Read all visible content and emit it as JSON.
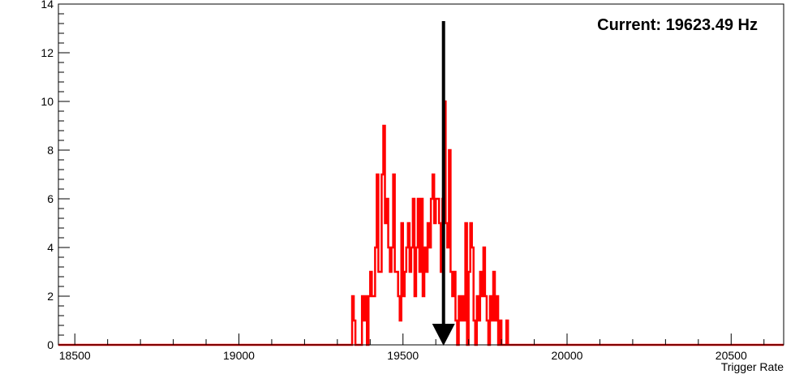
{
  "chart_data": {
    "type": "histogram",
    "title": "",
    "xlabel": "Trigger Rate",
    "ylabel": "",
    "xlim": [
      18450,
      20660
    ],
    "ylim": [
      0,
      14
    ],
    "x_ticks": [
      18500,
      19000,
      19500,
      20000,
      20500
    ],
    "y_ticks": [
      0,
      2,
      4,
      6,
      8,
      10,
      12,
      14
    ],
    "grid": false,
    "legend": "none",
    "series_color": "#ff0000",
    "annotation": {
      "text": "Current: 19623.49 Hz",
      "marker_x": 19623.49,
      "marker_color": "#000000"
    },
    "bins": [
      [
        19345,
        2
      ],
      [
        19350,
        1
      ],
      [
        19355,
        0
      ],
      [
        19360,
        0
      ],
      [
        19365,
        0
      ],
      [
        19370,
        0
      ],
      [
        19375,
        2
      ],
      [
        19380,
        1
      ],
      [
        19385,
        2
      ],
      [
        19390,
        0
      ],
      [
        19395,
        2
      ],
      [
        19400,
        3
      ],
      [
        19405,
        2
      ],
      [
        19410,
        2
      ],
      [
        19415,
        4
      ],
      [
        19420,
        7
      ],
      [
        19425,
        3
      ],
      [
        19430,
        3
      ],
      [
        19435,
        7
      ],
      [
        19440,
        9
      ],
      [
        19445,
        5
      ],
      [
        19450,
        6
      ],
      [
        19455,
        4
      ],
      [
        19460,
        3
      ],
      [
        19465,
        4
      ],
      [
        19470,
        7
      ],
      [
        19475,
        3
      ],
      [
        19480,
        3
      ],
      [
        19485,
        2
      ],
      [
        19490,
        1
      ],
      [
        19495,
        5
      ],
      [
        19500,
        2
      ],
      [
        19505,
        3
      ],
      [
        19510,
        4
      ],
      [
        19515,
        5
      ],
      [
        19520,
        3
      ],
      [
        19525,
        4
      ],
      [
        19530,
        6
      ],
      [
        19535,
        2
      ],
      [
        19540,
        4
      ],
      [
        19545,
        6
      ],
      [
        19550,
        3
      ],
      [
        19555,
        6
      ],
      [
        19560,
        2
      ],
      [
        19565,
        4
      ],
      [
        19570,
        3
      ],
      [
        19575,
        5
      ],
      [
        19580,
        4
      ],
      [
        19585,
        6
      ],
      [
        19590,
        7
      ],
      [
        19595,
        5
      ],
      [
        19600,
        6
      ],
      [
        19605,
        6
      ],
      [
        19610,
        5
      ],
      [
        19615,
        3
      ],
      [
        19620,
        6
      ],
      [
        19625,
        10
      ],
      [
        19630,
        5
      ],
      [
        19635,
        4
      ],
      [
        19640,
        8
      ],
      [
        19645,
        3
      ],
      [
        19650,
        2
      ],
      [
        19655,
        3
      ],
      [
        19660,
        1
      ],
      [
        19665,
        0
      ],
      [
        19670,
        2
      ],
      [
        19675,
        1
      ],
      [
        19680,
        2
      ],
      [
        19685,
        1
      ],
      [
        19690,
        5
      ],
      [
        19695,
        0
      ],
      [
        19700,
        3
      ],
      [
        19705,
        5
      ],
      [
        19710,
        4
      ],
      [
        19715,
        1
      ],
      [
        19720,
        0
      ],
      [
        19725,
        2
      ],
      [
        19730,
        1
      ],
      [
        19735,
        3
      ],
      [
        19740,
        2
      ],
      [
        19745,
        4
      ],
      [
        19750,
        2
      ],
      [
        19755,
        1
      ],
      [
        19760,
        0
      ],
      [
        19765,
        2
      ],
      [
        19770,
        1
      ],
      [
        19775,
        3
      ],
      [
        19780,
        1
      ],
      [
        19785,
        2
      ],
      [
        19790,
        0
      ],
      [
        19795,
        1
      ],
      [
        19800,
        0
      ],
      [
        19805,
        0
      ],
      [
        19810,
        0
      ],
      [
        19815,
        1
      ]
    ]
  }
}
